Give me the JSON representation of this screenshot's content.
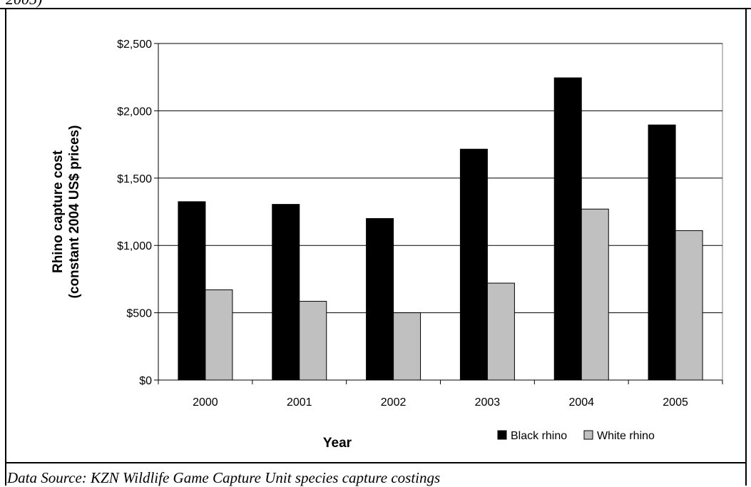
{
  "top_caption": "2005)",
  "source_note": "Data Source: KZN Wildlife Game Capture Unit species capture costings",
  "chart_data": {
    "type": "bar",
    "title": "",
    "xlabel": "Year",
    "ylabel_lines": [
      "Rhino capture cost",
      "(constant 2004 US$ prices)"
    ],
    "categories": [
      "2000",
      "2001",
      "2002",
      "2003",
      "2004",
      "2005"
    ],
    "series": [
      {
        "name": "Black rhino",
        "color": "#000000",
        "values": [
          1325,
          1305,
          1200,
          1715,
          2245,
          1895
        ]
      },
      {
        "name": "White rhino",
        "color": "#c0c0c0",
        "values": [
          670,
          585,
          500,
          720,
          1270,
          1110
        ]
      }
    ],
    "ylim": [
      0,
      2500
    ],
    "yticks": [
      0,
      500,
      1000,
      1500,
      2000,
      2500
    ],
    "ytick_labels": [
      "$0",
      "$500",
      "$1,000",
      "$1,500",
      "$2,000",
      "$2,500"
    ],
    "grid": true,
    "legend_position": "bottom-right"
  }
}
